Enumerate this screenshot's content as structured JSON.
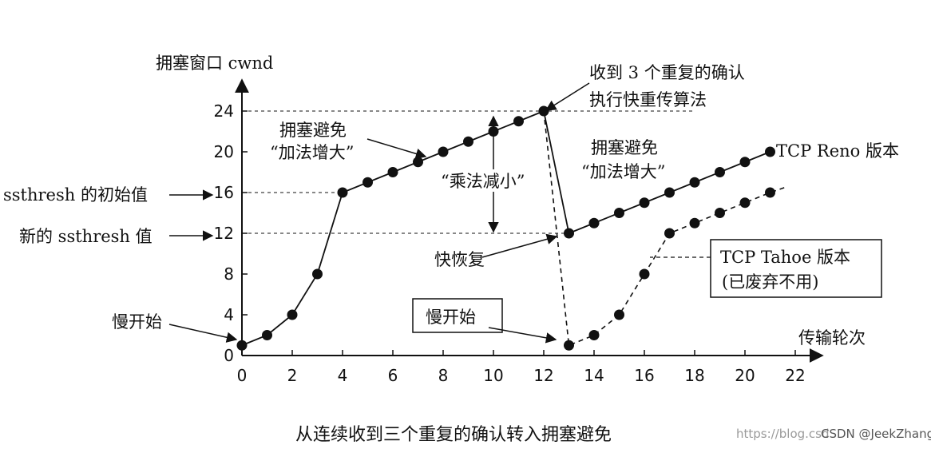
{
  "chart_data": {
    "type": "line",
    "title": "",
    "caption": "从连续收到三个重复的确认转入拥塞避免",
    "ylabel": "拥塞窗口 cwnd",
    "xlabel": "传输轮次",
    "xlim": [
      0,
      22
    ],
    "ylim": [
      0,
      24
    ],
    "x_ticks": [
      "0",
      "2",
      "4",
      "6",
      "8",
      "10",
      "12",
      "14",
      "16",
      "18",
      "20",
      "22"
    ],
    "y_ticks": [
      "0",
      "4",
      "8",
      "12",
      "16",
      "20",
      "24"
    ],
    "series": [
      {
        "name": "TCP Reno 版本",
        "points": [
          [
            0,
            1
          ],
          [
            1,
            2
          ],
          [
            2,
            4
          ],
          [
            3,
            8
          ],
          [
            4,
            16
          ],
          [
            5,
            17
          ],
          [
            6,
            18
          ],
          [
            7,
            19
          ],
          [
            8,
            20
          ],
          [
            9,
            21
          ],
          [
            10,
            22
          ],
          [
            11,
            23
          ],
          [
            12,
            24
          ],
          [
            13,
            12
          ],
          [
            14,
            13
          ],
          [
            15,
            14
          ],
          [
            16,
            15
          ],
          [
            17,
            16
          ],
          [
            18,
            17
          ],
          [
            19,
            18
          ],
          [
            20,
            19
          ],
          [
            21,
            20
          ]
        ]
      },
      {
        "name": "TCP Tahoe 版本",
        "note": "(已废弃不用)",
        "points": [
          [
            12,
            24
          ],
          [
            13,
            1
          ],
          [
            14,
            2
          ],
          [
            15,
            4
          ],
          [
            16,
            8
          ],
          [
            17,
            12
          ],
          [
            18,
            13
          ],
          [
            19,
            14
          ],
          [
            20,
            15
          ],
          [
            21,
            16
          ],
          [
            21.7,
            16.6
          ]
        ]
      }
    ],
    "reference_lines": [
      {
        "y": 24,
        "x_from": 0,
        "x_to": 18
      },
      {
        "y": 16,
        "x_from": 0,
        "x_to": 4
      },
      {
        "y": 12,
        "x_from": 0,
        "x_to": 13
      }
    ],
    "annotations": {
      "ssthresh_initial": "ssthresh 的初始值",
      "ssthresh_new": "新的 ssthresh 值",
      "slow_start_1": "慢开始",
      "slow_start_2": "慢开始",
      "ca_1_line1": "拥塞避免",
      "ca_1_line2": "“加法增大”",
      "ca_2_line1": "拥塞避免",
      "ca_2_line2": "“加法增大”",
      "mult_decrease": "“乘法减小”",
      "fast_recovery": "快恢复",
      "dup_ack_line1": "收到 3 个重复的确认",
      "dup_ack_line2": "执行快重传算法",
      "reno_label": "TCP Reno 版本",
      "tahoe_label": "TCP Tahoe 版本",
      "tahoe_note": "(已废弃不用)"
    },
    "grid": false,
    "legend": "none"
  },
  "watermark": {
    "url_text": "https://blog.csd",
    "credit": "CSDN @JeekZhang"
  }
}
